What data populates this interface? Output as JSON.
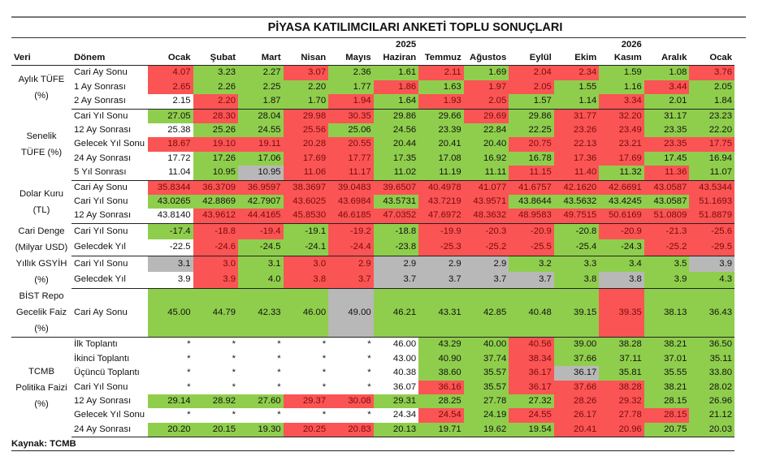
{
  "title": "PİYASA KATILIMCILARI ANKETİ TOPLU SONUÇLARI",
  "years": {
    "y1": "2025",
    "y2": "2026"
  },
  "headers": {
    "veri": "Veri",
    "donem": "Dönem",
    "months": [
      "Ocak",
      "Şubat",
      "Mart",
      "Nisan",
      "Mayıs",
      "Haziran",
      "Temmuz",
      "Ağustos",
      "Eylül",
      "Ekim",
      "Kasım",
      "Aralık",
      "Ocak"
    ]
  },
  "legend_colors": {
    "g": "#8fce4c",
    "r": "#fb5454",
    "x": "#b9b8b8",
    "w": "#ffffff"
  },
  "groups": [
    {
      "label": "Aylık TÜFE (%)",
      "rows": [
        {
          "period": "Cari Ay Sonu",
          "values": [
            "4.07",
            "3.23",
            "2.27",
            "3.07",
            "2.36",
            "1.61",
            "2.11",
            "1.69",
            "2.04",
            "2.34",
            "1.59",
            "1.08",
            "3.76"
          ],
          "colors": "rggrggrgrrggr"
        },
        {
          "period": "1 Ay Sonrası",
          "values": [
            "2.65",
            "2.26",
            "2.25",
            "2.20",
            "1.77",
            "1.86",
            "1.63",
            "1.97",
            "2.05",
            "1.55",
            "1.16",
            "3.44",
            "2.05"
          ],
          "colors": "rggggrgrrggrg"
        },
        {
          "period": "2 Ay Sonrası",
          "values": [
            "2.15",
            "2.20",
            "1.87",
            "1.70",
            "1.94",
            "1.64",
            "1.93",
            "2.05",
            "1.57",
            "1.14",
            "3.34",
            "2.01",
            "1.84"
          ],
          "colors": "wrggrgrrggrgg"
        }
      ]
    },
    {
      "label": "Senelik TÜFE (%)",
      "rows": [
        {
          "period": "Cari Yıl Sonu",
          "values": [
            "27.05",
            "28.30",
            "28.04",
            "29.98",
            "30.35",
            "29.86",
            "29.66",
            "29.69",
            "29.86",
            "31.77",
            "32.20",
            "31.17",
            "23.23"
          ],
          "colors": "grgrrggrgrrgg"
        },
        {
          "period": "12 Ay Sonrası",
          "values": [
            "25.38",
            "25.26",
            "24.55",
            "25.56",
            "25.06",
            "24.56",
            "23.39",
            "22.84",
            "22.25",
            "23.26",
            "23.49",
            "23.35",
            "22.20"
          ],
          "colors": "wggrgggggrrgg"
        },
        {
          "period": "Gelecek Yıl Sonu",
          "values": [
            "18.67",
            "19.10",
            "19.11",
            "20.28",
            "20.55",
            "20.44",
            "20.41",
            "20.40",
            "20.75",
            "22.13",
            "23.21",
            "23.35",
            "17.75"
          ],
          "colors": "rrrrrgggrrrrr"
        },
        {
          "period": "24 Ay Sonrası",
          "values": [
            "17.72",
            "17.26",
            "17.06",
            "17.69",
            "17.77",
            "17.35",
            "17.08",
            "16.92",
            "16.78",
            "17.36",
            "17.69",
            "17.45",
            "16.94"
          ],
          "colors": "wggrrggggrrgg"
        },
        {
          "period": "5 Yıl Sonrası",
          "values": [
            "11.04",
            "10.95",
            "10.95",
            "11.06",
            "11.17",
            "11.02",
            "11.19",
            "11.11",
            "11.15",
            "11.40",
            "11.32",
            "11.36",
            "11.07"
          ],
          "colors": "wgxrrgggrrgrg"
        }
      ]
    },
    {
      "label": "Dolar Kuru (TL)",
      "rows": [
        {
          "period": "Cari Ay Sonu",
          "values": [
            "35.8344",
            "36.3709",
            "36.9597",
            "38.3697",
            "39.0483",
            "39.6507",
            "40.4978",
            "41.077",
            "41.6757",
            "42.1620",
            "42.6691",
            "43.0587",
            "43.5344"
          ],
          "colors": "rrrrrrrrrrrrr"
        },
        {
          "period": "Cari Yıl Sonu",
          "values": [
            "43.0265",
            "42.8869",
            "42.7907",
            "43.6025",
            "43.6984",
            "43.5731",
            "43.7219",
            "43.9571",
            "43.8644",
            "43.5632",
            "43.4245",
            "43.0587",
            "51.1693"
          ],
          "colors": "gggrrgrrggggr"
        },
        {
          "period": "12 Ay Sonrası",
          "values": [
            "43.8140",
            "43.9612",
            "44.4165",
            "45.8530",
            "46.6185",
            "47.0352",
            "47.6972",
            "48.3632",
            "48.9583",
            "49.7515",
            "50.6169",
            "51.0809",
            "51.8879"
          ],
          "colors": "wrrrrrrrrrrrr"
        }
      ]
    },
    {
      "label": "Cari Denge (Milyar USD)",
      "rows": [
        {
          "period": "Cari Yıl Sonu",
          "values": [
            "-17.4",
            "-18.8",
            "-19.4",
            "-19.1",
            "-19.2",
            "-18.8",
            "-19.9",
            "-20.3",
            "-20.9",
            "-20.8",
            "-20.9",
            "-21.3",
            "-25.6"
          ],
          "colors": "grrgrgrrrgrrr"
        },
        {
          "period": "Gelecdek Yıl",
          "values": [
            "-22.5",
            "-24.6",
            "-24.5",
            "-24.1",
            "-24.4",
            "-23.8",
            "-25.3",
            "-25.2",
            "-25.5",
            "-25.4",
            "-24.3",
            "-25.2",
            "-29.5"
          ],
          "colors": "wrggrgrrrggrr"
        }
      ]
    },
    {
      "label": "Yıllık GSYİH (%)",
      "rows": [
        {
          "period": "Cari Yıl Sonu",
          "values": [
            "3.1",
            "3.0",
            "3.1",
            "3.0",
            "2.9",
            "2.9",
            "2.9",
            "2.9",
            "3.2",
            "3.3",
            "3.4",
            "3.5",
            "3.9"
          ],
          "colors": "xrgrrxxxggggx"
        },
        {
          "period": "Gelecdek Yıl",
          "values": [
            "3.9",
            "3.9",
            "4.0",
            "3.8",
            "3.7",
            "3.7",
            "3.7",
            "3.7",
            "3.7",
            "3.8",
            "3.8",
            "3.9",
            "4.3"
          ],
          "colors": "wrgrrxxxxgxgg"
        }
      ]
    },
    {
      "label": "BİST Repo Gecelik Faiz (%)",
      "tall": true,
      "rows": [
        {
          "period": "Cari Ay Sonu",
          "values": [
            "45.00",
            "44.79",
            "42.33",
            "46.00",
            "49.00",
            "46.21",
            "43.31",
            "42.85",
            "40.48",
            "39.15",
            "39.35",
            "38.13",
            "36.43"
          ],
          "colors": "ggggxgggggrgg"
        }
      ]
    },
    {
      "label": "TCMB Politika Faizi (%)",
      "rows": [
        {
          "period": "İlk Toplantı",
          "values": [
            "*",
            "*",
            "*",
            "*",
            "*",
            "46.00",
            "43.29",
            "40.00",
            "40.56",
            "39.00",
            "38.28",
            "38.21",
            "36.50"
          ],
          "colors": "wwwwwwggrgggg"
        },
        {
          "period": "İkinci Toplantı",
          "values": [
            "*",
            "*",
            "*",
            "*",
            "*",
            "43.00",
            "40.90",
            "37.74",
            "38.34",
            "37.66",
            "37.11",
            "37.01",
            "35.11"
          ],
          "colors": "wwwwwwggrgggg"
        },
        {
          "period": "Üçüncü Toplantı",
          "values": [
            "*",
            "*",
            "*",
            "*",
            "*",
            "40.38",
            "38.60",
            "35.57",
            "36.17",
            "36.17",
            "35.81",
            "35.55",
            "33.80"
          ],
          "colors": "wwwwwwggrxggg"
        },
        {
          "period": "Cari Yıl Sonu",
          "values": [
            "*",
            "*",
            "*",
            "*",
            "*",
            "36.07",
            "36.16",
            "35.57",
            "36.17",
            "37.66",
            "38.28",
            "38.21",
            "28.02"
          ],
          "colors": "wwwwwwrgrrrgg"
        },
        {
          "period": "12 Ay Sonrası",
          "values": [
            "29.14",
            "28.92",
            "27.60",
            "29.37",
            "30.08",
            "29.31",
            "28.25",
            "27.78",
            "27.32",
            "28.26",
            "29.32",
            "28.15",
            "26.96"
          ],
          "colors": "gggrrggggrrgg"
        },
        {
          "period": "Gelecek Yıl Sonu",
          "values": [
            "*",
            "*",
            "*",
            "*",
            "*",
            "24.34",
            "24.54",
            "24.19",
            "24.55",
            "26.17",
            "27.78",
            "28.15",
            "21.12"
          ],
          "colors": "wwwwwwrgrrrrg"
        },
        {
          "period": "24 Ay Sonrası",
          "values": [
            "20.20",
            "20.15",
            "19.30",
            "20.25",
            "20.83",
            "20.13",
            "19.71",
            "19.62",
            "19.54",
            "20.41",
            "20.96",
            "20.75",
            "20.03"
          ],
          "colors": "gggrrggggrrgg"
        }
      ]
    }
  ],
  "source": "Kaynak: TCMB"
}
